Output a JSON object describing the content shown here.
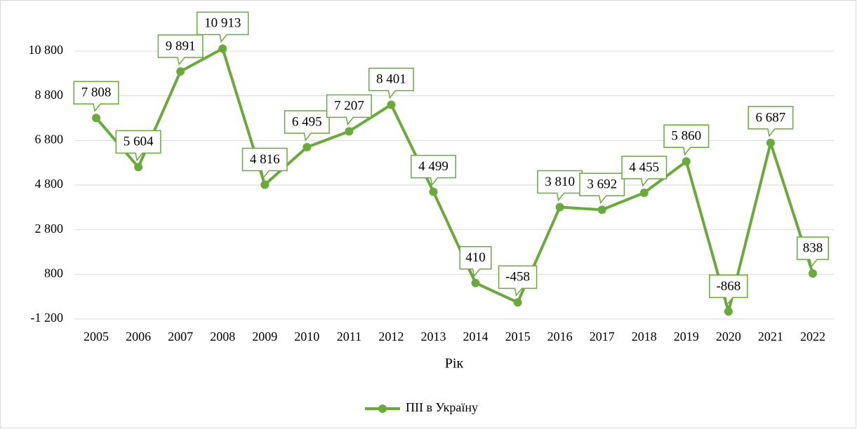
{
  "chart_data": {
    "type": "line",
    "categories": [
      "2005",
      "2006",
      "2007",
      "2008",
      "2009",
      "2010",
      "2011",
      "2012",
      "2013",
      "2014",
      "2015",
      "2016",
      "2017",
      "2018",
      "2019",
      "2020",
      "2021",
      "2022"
    ],
    "series": [
      {
        "name": "ПІІ в Україну",
        "color": "#6aaa3a",
        "values": [
          7808,
          5604,
          9891,
          10913,
          4816,
          6495,
          7207,
          8401,
          4499,
          410,
          -458,
          3810,
          3692,
          4455,
          5860,
          -868,
          6687,
          838
        ],
        "value_labels": [
          "7 808",
          "5 604",
          "9 891",
          "10 913",
          "4 816",
          "6 495",
          "7 207",
          "8 401",
          "4 499",
          "410",
          "-458",
          "3 810",
          "3 692",
          "4 455",
          "5 860",
          "-868",
          "6 687",
          "838"
        ]
      }
    ],
    "xlabel": "Рік",
    "ylim": [
      -1200,
      12800
    ],
    "yticks": [
      {
        "value": -1200,
        "label": "-1 200"
      },
      800,
      {
        "value": 2800,
        "label": "2 800"
      },
      {
        "value": 4800,
        "label": "4 800"
      },
      {
        "value": 6800,
        "label": "6 800"
      },
      {
        "value": 8800,
        "label": "8 800"
      },
      {
        "value": 10800,
        "label": "10 800"
      }
    ],
    "grid": true,
    "legend": "bottom"
  }
}
